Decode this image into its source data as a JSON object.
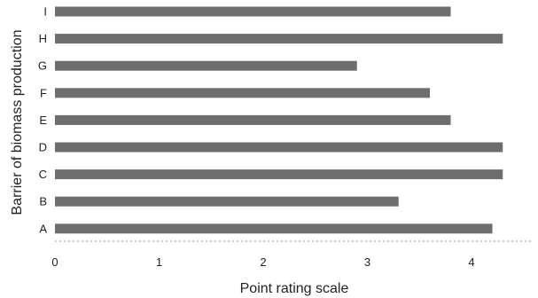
{
  "chart_data": {
    "type": "bar",
    "orientation": "horizontal",
    "title": "",
    "xlabel": "Point rating scale",
    "ylabel": "Barrier of biomass production",
    "categories": [
      "A",
      "B",
      "C",
      "D",
      "E",
      "F",
      "G",
      "H",
      "I"
    ],
    "values": [
      4.2,
      3.3,
      4.3,
      4.3,
      3.8,
      3.6,
      2.9,
      4.3,
      3.8
    ],
    "xlim": [
      0,
      4.6
    ],
    "xticks": [
      0,
      1,
      2,
      3,
      4
    ],
    "grid": false,
    "legend": "none",
    "bar_color": "#6e6e6e"
  }
}
